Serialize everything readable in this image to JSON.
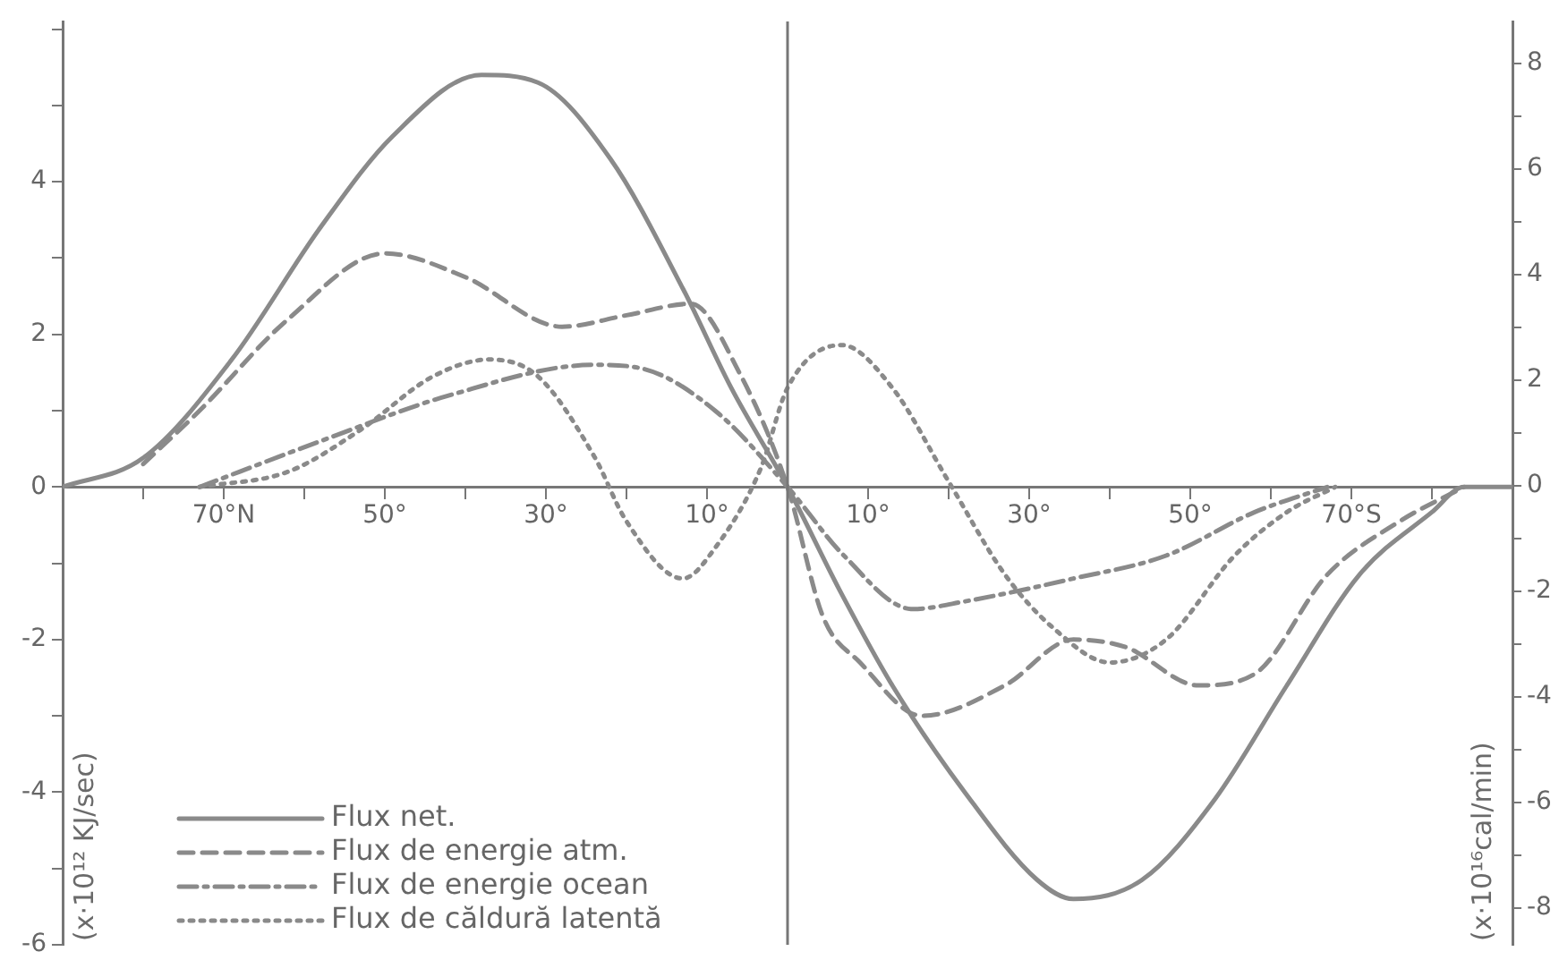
{
  "chart_data": {
    "type": "line",
    "ylabel": "(x·10¹² KJ/sec)",
    "y2label": "(x·10¹⁶cal/min)",
    "xlim": [
      90,
      -90
    ],
    "xticks": [
      {
        "value": 80,
        "label": null
      },
      {
        "value": 70,
        "label": "70°N"
      },
      {
        "value": 60,
        "label": null
      },
      {
        "value": 50,
        "label": "50°"
      },
      {
        "value": 40,
        "label": null
      },
      {
        "value": 30,
        "label": "30°"
      },
      {
        "value": 20,
        "label": null
      },
      {
        "value": 10,
        "label": "10°"
      },
      {
        "value": -10,
        "label": "10°"
      },
      {
        "value": -20,
        "label": null
      },
      {
        "value": -30,
        "label": "30°"
      },
      {
        "value": -40,
        "label": null
      },
      {
        "value": -50,
        "label": "50°"
      },
      {
        "value": -60,
        "label": null
      },
      {
        "value": -70,
        "label": "70°S"
      },
      {
        "value": -80,
        "label": null
      }
    ],
    "ylim": [
      -6,
      6.1
    ],
    "yticks": [
      -6,
      {
        "value": -5,
        "label": null
      },
      -4,
      {
        "value": -3,
        "label": null
      },
      -2,
      {
        "value": -1,
        "label": null
      },
      0,
      {
        "value": 1,
        "label": null
      },
      2,
      {
        "value": 3,
        "label": null
      },
      4,
      {
        "value": 5,
        "label": null
      },
      {
        "value": 6,
        "label": null
      }
    ],
    "y2lim": [
      -8.7,
      8.8
    ],
    "y2ticks": [
      -8,
      {
        "value": -7,
        "label": null
      },
      -6,
      {
        "value": -5,
        "label": null
      },
      -4,
      {
        "value": -3,
        "label": null
      },
      -2,
      {
        "value": -1,
        "label": null
      },
      0,
      {
        "value": 1,
        "label": null
      },
      2,
      {
        "value": 3,
        "label": null
      },
      4,
      {
        "value": 5,
        "label": null
      },
      6,
      {
        "value": 7,
        "label": null
      },
      8
    ],
    "grid": false,
    "legend": "bottom left",
    "marker": "none",
    "ref_lines": [
      {
        "axis": "x",
        "value": 0,
        "color": "#777777"
      }
    ],
    "series": [
      {
        "name": "Flux net.",
        "color": "#8a8a8a",
        "line_style": "solid",
        "x": [
          90,
          80,
          69,
          58,
          49,
          38,
          31,
          22,
          13,
          7,
          0,
          -6.7,
          -13,
          -22,
          -31,
          -35.5,
          -44,
          -53,
          -62,
          -71,
          -80,
          -84,
          -90
        ],
        "values": [
          0,
          0.38,
          1.67,
          3.4,
          4.6,
          5.4,
          5.3,
          4.3,
          2.6,
          1.3,
          0,
          -1.4,
          -2.6,
          -4.0,
          -5.15,
          -5.4,
          -5.15,
          -4.1,
          -2.6,
          -1.15,
          -0.33,
          0,
          0
        ]
      },
      {
        "name": "Flux de energie atm.",
        "color": "#8a8a8a",
        "line_style": "dashed",
        "x": [
          80,
          73,
          62,
          50,
          40,
          28,
          20,
          12,
          6,
          0,
          -4.4,
          -9,
          -16.7,
          -27,
          -35.5,
          -42,
          -51,
          -58,
          -67,
          -76,
          -84
        ],
        "values": [
          0.3,
          1.0,
          2.2,
          3.06,
          2.75,
          2.1,
          2.25,
          2.4,
          1.5,
          0,
          -1.7,
          -2.3,
          -3.0,
          -2.6,
          -2.0,
          -2.1,
          -2.6,
          -2.45,
          -1.15,
          -0.45,
          0
        ]
      },
      {
        "name": "Flux de energie ocean",
        "color": "#8a8a8a",
        "line_style": "dashdot",
        "x": [
          73,
          58,
          42,
          24,
          18,
          9,
          0,
          -7,
          -15.5,
          -22,
          -35.5,
          -47,
          -58,
          -67
        ],
        "values": [
          0,
          0.6,
          1.2,
          1.6,
          1.55,
          1.0,
          0,
          -0.9,
          -1.6,
          -1.5,
          -1.2,
          -0.9,
          -0.33,
          0
        ]
      },
      {
        "name": "Flux de căldură latentă",
        "color": "#8a8a8a",
        "line_style": "dotted",
        "x": [
          73,
          62,
          53,
          44,
          37,
          31,
          24,
          20,
          13,
          9,
          3.3,
          0,
          -6.7,
          -13,
          -20,
          -27,
          -33,
          -40,
          -47,
          -55.5,
          -62,
          -68
        ],
        "values": [
          0,
          0.2,
          0.75,
          1.45,
          1.67,
          1.45,
          0.4,
          -0.45,
          -1.2,
          -0.8,
          0.25,
          1.3,
          1.86,
          1.3,
          0.07,
          -1.15,
          -1.85,
          -2.3,
          -2.0,
          -0.9,
          -0.33,
          0
        ]
      }
    ]
  }
}
